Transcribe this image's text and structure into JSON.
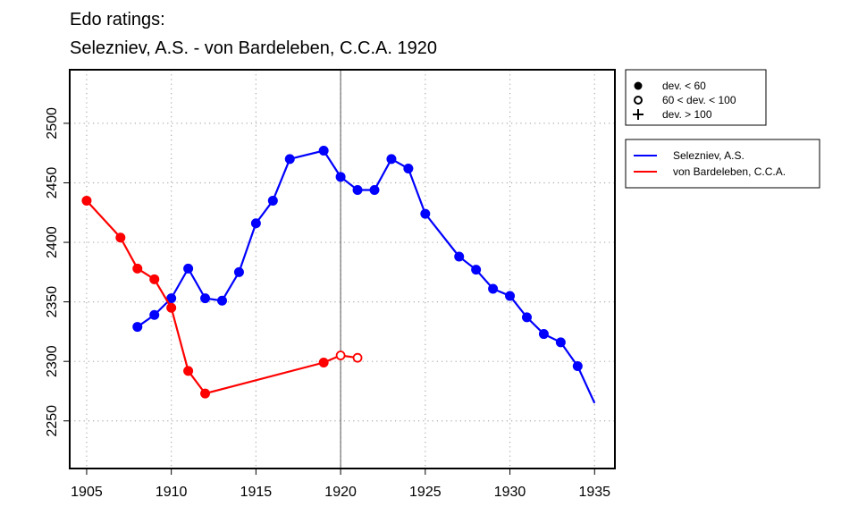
{
  "chart_data": {
    "type": "line",
    "title_lines": [
      "Edo ratings:",
      "Selezniev, A.S. - von Bardeleben, C.C.A. 1920"
    ],
    "xlabel": "",
    "ylabel": "",
    "xlim": [
      1904,
      1936.2
    ],
    "ylim": [
      2210,
      2545
    ],
    "x_ticks": [
      1905,
      1910,
      1915,
      1920,
      1925,
      1930,
      1935
    ],
    "y_ticks": [
      2250,
      2300,
      2350,
      2400,
      2450,
      2500
    ],
    "grid": true,
    "highlight_year": 1920,
    "legend_markers": [
      {
        "marker": "filled",
        "label": "dev. < 60"
      },
      {
        "marker": "open",
        "label": "60 < dev. < 100"
      },
      {
        "marker": "plus",
        "label": "dev. > 100"
      }
    ],
    "series": [
      {
        "name": "Selezniev, A.S.",
        "color": "#0000ff",
        "points": [
          {
            "x": 1908,
            "y": 2329,
            "marker": "filled"
          },
          {
            "x": 1909,
            "y": 2339,
            "marker": "filled"
          },
          {
            "x": 1910,
            "y": 2353,
            "marker": "filled"
          },
          {
            "x": 1911,
            "y": 2378,
            "marker": "filled"
          },
          {
            "x": 1912,
            "y": 2353,
            "marker": "filled"
          },
          {
            "x": 1913,
            "y": 2351,
            "marker": "filled"
          },
          {
            "x": 1914,
            "y": 2375,
            "marker": "filled"
          },
          {
            "x": 1915,
            "y": 2416,
            "marker": "filled"
          },
          {
            "x": 1916,
            "y": 2435,
            "marker": "filled"
          },
          {
            "x": 1917,
            "y": 2470,
            "marker": "filled"
          },
          {
            "x": 1919,
            "y": 2477,
            "marker": "filled"
          },
          {
            "x": 1920,
            "y": 2455,
            "marker": "filled"
          },
          {
            "x": 1921,
            "y": 2444,
            "marker": "filled"
          },
          {
            "x": 1922,
            "y": 2444,
            "marker": "filled"
          },
          {
            "x": 1923,
            "y": 2470,
            "marker": "filled"
          },
          {
            "x": 1924,
            "y": 2462,
            "marker": "filled"
          },
          {
            "x": 1925,
            "y": 2424,
            "marker": "filled"
          },
          {
            "x": 1927,
            "y": 2388,
            "marker": "filled"
          },
          {
            "x": 1928,
            "y": 2377,
            "marker": "filled"
          },
          {
            "x": 1929,
            "y": 2361,
            "marker": "filled"
          },
          {
            "x": 1930,
            "y": 2355,
            "marker": "filled"
          },
          {
            "x": 1931,
            "y": 2337,
            "marker": "filled"
          },
          {
            "x": 1932,
            "y": 2323,
            "marker": "filled"
          },
          {
            "x": 1933,
            "y": 2316,
            "marker": "filled"
          },
          {
            "x": 1934,
            "y": 2296,
            "marker": "filled"
          },
          {
            "x": 1935,
            "y": 2265,
            "marker": "none"
          }
        ]
      },
      {
        "name": "von Bardeleben, C.C.A.",
        "color": "#ff0000",
        "points": [
          {
            "x": 1905,
            "y": 2435,
            "marker": "filled"
          },
          {
            "x": 1907,
            "y": 2404,
            "marker": "filled"
          },
          {
            "x": 1908,
            "y": 2378,
            "marker": "filled"
          },
          {
            "x": 1909,
            "y": 2369,
            "marker": "filled"
          },
          {
            "x": 1910,
            "y": 2345,
            "marker": "filled"
          },
          {
            "x": 1911,
            "y": 2292,
            "marker": "filled"
          },
          {
            "x": 1912,
            "y": 2273,
            "marker": "filled"
          },
          {
            "x": 1919,
            "y": 2299,
            "marker": "filled"
          },
          {
            "x": 1920,
            "y": 2305,
            "marker": "open"
          },
          {
            "x": 1921,
            "y": 2303,
            "marker": "open"
          }
        ]
      }
    ]
  }
}
